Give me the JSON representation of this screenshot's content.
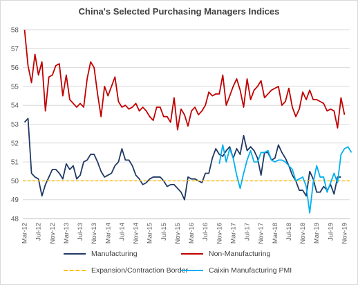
{
  "chart_data": {
    "type": "line",
    "title": "China's Selected Purchasing Managers Indices",
    "xlabel": "",
    "ylabel": "",
    "ylim": [
      48,
      58
    ],
    "yticks": [
      48,
      49,
      50,
      51,
      52,
      53,
      54,
      55,
      56,
      57,
      58
    ],
    "x_start": "Mar-12",
    "x_tick_labels": [
      "Mar-12",
      "Jul-12",
      "Nov-12",
      "Mar-13",
      "Jul-13",
      "Nov-13",
      "Mar-14",
      "Jul-14",
      "Nov-14",
      "Mar-15",
      "Jul-15",
      "Nov-15",
      "Mar-16",
      "Jul-16",
      "Nov-16",
      "Mar-17",
      "Jul-17",
      "Nov-17",
      "Mar-18",
      "Jul-18",
      "Nov-18",
      "Mar-19",
      "Jul-19",
      "Nov-19"
    ],
    "grid": "horizontal",
    "legend_position": "bottom",
    "series": [
      {
        "name": "Manufacturing",
        "color": "#1f3864",
        "start": "Mar-12",
        "values": [
          53.1,
          53.3,
          50.4,
          50.2,
          50.1,
          49.2,
          49.8,
          50.2,
          50.6,
          50.6,
          50.4,
          50.1,
          50.9,
          50.6,
          50.8,
          50.1,
          50.3,
          51.0,
          51.1,
          51.4,
          51.4,
          51.0,
          50.5,
          50.2,
          50.3,
          50.4,
          50.8,
          51.0,
          51.7,
          51.1,
          51.1,
          50.8,
          50.3,
          50.1,
          49.8,
          49.9,
          50.1,
          50.2,
          50.2,
          50.2,
          50.0,
          49.7,
          49.8,
          49.8,
          49.6,
          49.4,
          49.0,
          50.2,
          50.1,
          50.1,
          50.0,
          49.9,
          50.4,
          50.4,
          51.2,
          51.7,
          51.4,
          51.3,
          51.6,
          51.8,
          51.2,
          51.7,
          51.4,
          52.4,
          51.6,
          51.8,
          51.6,
          51.2,
          50.3,
          51.5,
          51.5,
          51.1,
          51.2,
          51.9,
          51.5,
          51.2,
          50.8,
          50.3,
          50.0,
          49.5,
          49.5,
          49.2,
          50.5,
          50.1,
          49.4,
          49.4,
          49.7,
          49.5,
          49.8,
          49.3,
          50.2,
          50.2
        ]
      },
      {
        "name": "Non-Manufacturing",
        "color": "#c00000",
        "start": "Mar-12",
        "values": [
          58.0,
          56.1,
          55.2,
          56.7,
          55.6,
          56.3,
          53.7,
          55.5,
          55.6,
          56.1,
          56.2,
          54.5,
          55.6,
          54.3,
          54.1,
          53.9,
          54.1,
          53.9,
          55.4,
          56.3,
          56.0,
          54.6,
          53.4,
          55.0,
          54.5,
          55.0,
          55.5,
          54.2,
          53.9,
          54.0,
          53.8,
          53.9,
          54.1,
          53.7,
          53.9,
          53.7,
          53.4,
          53.2,
          53.9,
          53.9,
          53.4,
          53.4,
          53.1,
          54.4,
          52.7,
          53.8,
          53.5,
          52.9,
          53.7,
          53.9,
          53.5,
          53.7,
          54.0,
          54.7,
          54.5,
          54.6,
          54.6,
          55.6,
          54.0,
          54.5,
          55.0,
          55.4,
          54.8,
          53.9,
          55.4,
          54.3,
          54.8,
          55.0,
          55.3,
          54.4,
          54.6,
          54.8,
          54.9,
          55.0,
          54.0,
          54.2,
          54.9,
          53.9,
          53.4,
          53.8,
          54.7,
          54.3,
          54.8,
          54.3,
          54.3,
          54.2,
          54.1,
          53.7,
          53.8,
          53.7,
          52.8,
          54.4,
          53.5
        ]
      },
      {
        "name": "Expansion/Contraction Border",
        "color": "#ffc000",
        "dashed": true,
        "constant": 50
      },
      {
        "name": "Caixin Manufacturing PMI",
        "color": "#00b0f0",
        "start": "Nov-16",
        "values": [
          50.9,
          51.9,
          51.0,
          51.7,
          51.2,
          50.3,
          49.6,
          50.4,
          51.1,
          51.6,
          51.0,
          51.0,
          51.5,
          51.5,
          51.6,
          51.1,
          51.0,
          51.1,
          51.1,
          51.0,
          50.8,
          50.6,
          50.0,
          50.1,
          50.2,
          49.7,
          48.3,
          49.9,
          50.8,
          50.2,
          50.2,
          49.4,
          49.9,
          50.4,
          49.9,
          51.4,
          51.7,
          51.8,
          51.5
        ]
      }
    ]
  }
}
